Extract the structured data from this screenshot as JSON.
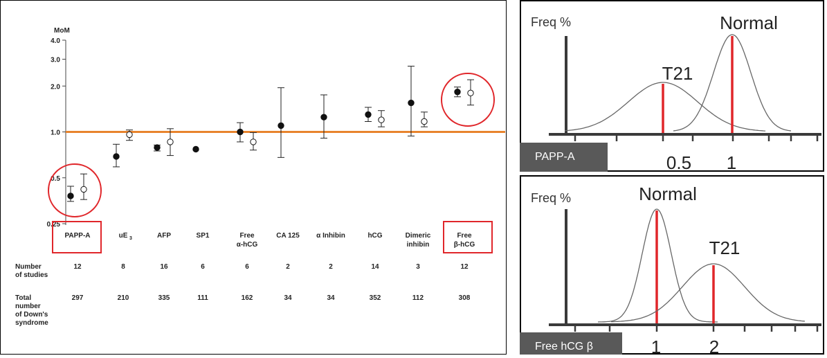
{
  "chart_data": [
    {
      "type": "scatter",
      "title": "",
      "ylabel": "MoM",
      "yscale": "log",
      "ylim": [
        0.25,
        4.0
      ],
      "yticks": [
        "4.0",
        "3.0",
        "2.0",
        "1.0",
        "0.5",
        "0.25"
      ],
      "reference_line": 1.0,
      "categories": [
        "PAPP-A",
        "uE3",
        "AFP",
        "SP1",
        "Free α-hCG",
        "CA 125",
        "α Inhibin",
        "hCG",
        "Dimeric inhibin",
        "Free β-hCG"
      ],
      "category_labels": [
        [
          "PAPP-A"
        ],
        [
          "uE",
          "3"
        ],
        [
          "AFP"
        ],
        [
          "SP1"
        ],
        [
          "Free",
          "α-hCG"
        ],
        [
          "CA 125"
        ],
        [
          "α Inhibin"
        ],
        [
          "hCG"
        ],
        [
          "Dimeric",
          "inhibin"
        ],
        [
          "Free",
          "β-hCG"
        ]
      ],
      "highlighted_categories": [
        "PAPP-A",
        "Free β-hCG"
      ],
      "series": [
        {
          "marker": "filled",
          "values": [
            0.38,
            0.69,
            0.79,
            0.77,
            1.0,
            1.1,
            1.25,
            1.3,
            1.55,
            1.83
          ],
          "ci_low": [
            0.35,
            0.59,
            0.75,
            null,
            0.86,
            0.68,
            0.91,
            1.17,
            0.94,
            1.7
          ],
          "ci_high": [
            0.44,
            0.83,
            0.82,
            null,
            1.15,
            1.95,
            1.75,
            1.45,
            2.7,
            1.97
          ]
        },
        {
          "marker": "open",
          "values": [
            0.42,
            0.96,
            0.86,
            null,
            0.86,
            null,
            null,
            1.2,
            1.17,
            1.8
          ],
          "ci_low": [
            0.36,
            0.88,
            0.7,
            null,
            0.76,
            null,
            null,
            1.08,
            1.08,
            1.5
          ],
          "ci_high": [
            0.53,
            1.03,
            1.05,
            null,
            0.99,
            null,
            null,
            1.38,
            1.35,
            2.2
          ]
        }
      ],
      "table": {
        "rows": [
          {
            "label": [
              "Number",
              "of studies"
            ],
            "values": [
              "12",
              "8",
              "16",
              "6",
              "6",
              "2",
              "2",
              "14",
              "3",
              "12"
            ]
          },
          {
            "label": [
              "Total",
              "number",
              "of Down's",
              "syndrome"
            ],
            "values": [
              "297",
              "210",
              "335",
              "111",
              "162",
              "34",
              "34",
              "352",
              "112",
              "308"
            ]
          }
        ]
      }
    },
    {
      "type": "area",
      "ylabel": "Freq %",
      "x_tick_labels": [
        "0.5",
        "1"
      ],
      "axis_caption": "PAPP-A",
      "series": [
        {
          "name": "T21",
          "mean": 0.5
        },
        {
          "name": "Normal",
          "mean": 1
        }
      ]
    },
    {
      "type": "area",
      "ylabel": "Freq %",
      "x_tick_labels": [
        "1",
        "2"
      ],
      "axis_caption": "Free hCG β",
      "series": [
        {
          "name": "Normal",
          "mean": 1
        },
        {
          "name": "T21",
          "mean": 2
        }
      ]
    }
  ],
  "colors": {
    "reference_line": "#E8842E",
    "highlight": "#E0262A",
    "marker_line": "#222222",
    "panel_border": "#000000",
    "caption_bg": "#595959",
    "caption_text": "#ffffff",
    "curve": "#666666",
    "axis": "#3a3a3a"
  }
}
